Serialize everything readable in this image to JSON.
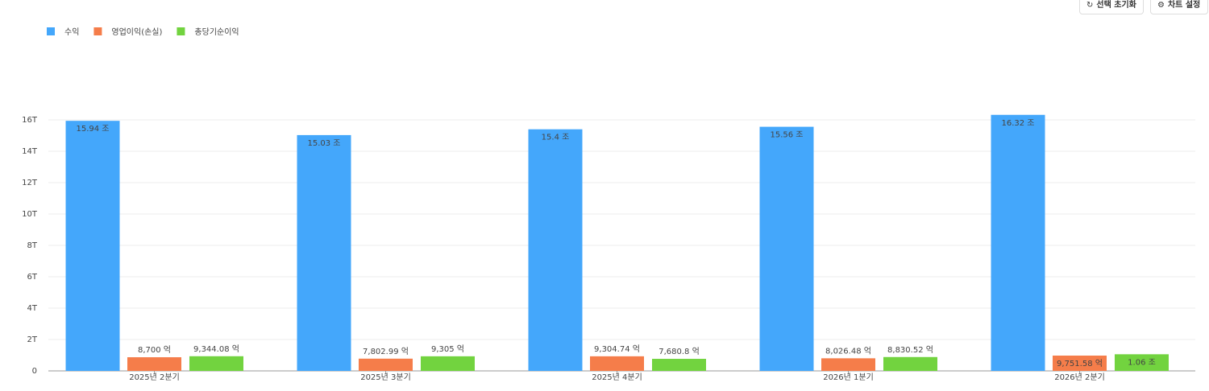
{
  "toolbar": {
    "buttons": [
      "선택 초기화",
      "차트 설정"
    ]
  },
  "chart_data": {
    "type": "bar",
    "categories": [
      "2025년 2분기",
      "2025년 3분기",
      "2025년 4분기",
      "2026년 1분기",
      "2026년 2분기"
    ],
    "series": [
      {
        "name": "수익",
        "color": "#44a7fb",
        "values": [
          15.94,
          15.03,
          15.4,
          15.56,
          16.32
        ],
        "value_labels": [
          "15.94 조",
          "15.03 조",
          "15.4 조",
          "15.56 조",
          "16.32 조"
        ]
      },
      {
        "name": "영업이익(손실)",
        "color": "#f57d4a",
        "values": [
          0.87,
          0.780299,
          0.930474,
          0.802648,
          0.975158
        ],
        "value_labels": [
          "8,700 억",
          "7,802.99 억",
          "9,304.74 억",
          "8,026.48 억",
          "9,751.58 억"
        ]
      },
      {
        "name": "총당기순이익",
        "color": "#72d33f",
        "values": [
          0.934408,
          0.9305,
          0.76808,
          0.883052,
          1.06
        ],
        "value_labels": [
          "9,344.08 억",
          "9,305 억",
          "7,680.8 억",
          "8,830.52 억",
          "1.06 조"
        ]
      }
    ],
    "ylim": [
      0,
      17
    ],
    "yticks": [
      {
        "value": 0,
        "label": "0"
      },
      {
        "value": 2,
        "label": "2T"
      },
      {
        "value": 4,
        "label": "4T"
      },
      {
        "value": 6,
        "label": "6T"
      },
      {
        "value": 8,
        "label": "8T"
      },
      {
        "value": 10,
        "label": "10T"
      },
      {
        "value": 12,
        "label": "12T"
      },
      {
        "value": 14,
        "label": "14T"
      },
      {
        "value": 16,
        "label": "16T"
      }
    ],
    "grid": true,
    "legend": "top-left"
  }
}
